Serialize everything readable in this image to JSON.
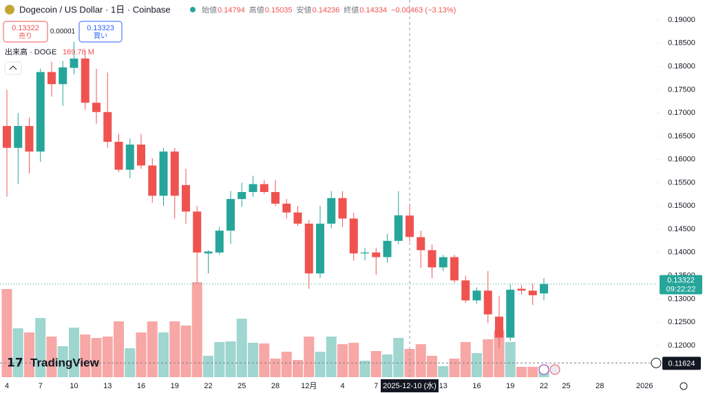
{
  "chart_data": {
    "type": "candlestick",
    "title": "Dogecoin / US Dollar · 1日 · Coinbase",
    "legend_labels": [
      "始値",
      "高値",
      "安値",
      "終値"
    ],
    "change_label": "−0.00463 (−3.13%)",
    "bid": 0.13322,
    "bid_label": "売り",
    "spread": 1e-05,
    "ask": 0.13323,
    "ask_label": "買い",
    "volume_title": "出来高 · DOGE",
    "volume_last_label": "169.78 M",
    "categories": [
      "4",
      null,
      null,
      "7",
      null,
      null,
      "10",
      null,
      null,
      "13",
      null,
      null,
      "16",
      null,
      null,
      "19",
      null,
      null,
      "22",
      null,
      null,
      "25",
      null,
      null,
      "28",
      null,
      null,
      "12月",
      null,
      null,
      "4",
      null,
      null,
      "7",
      null,
      null,
      null,
      null,
      null,
      "13",
      null,
      null,
      "16",
      null,
      null,
      "19",
      null,
      null,
      "22"
    ],
    "future_x_labels": [
      "25",
      "28",
      "2026"
    ],
    "crosshair_label": "2025-12-10 (水)",
    "open": [
      0.1672,
      0.1625,
      0.1672,
      0.1617,
      0.1788,
      0.1762,
      0.1797,
      0.1817,
      0.1722,
      0.1702,
      0.1638,
      0.1578,
      0.1632,
      0.1587,
      0.1522,
      0.1617,
      0.1545,
      0.1488,
      0.1398,
      0.14,
      0.1447,
      0.1515,
      0.153,
      0.1547,
      0.153,
      0.1505,
      0.1486,
      0.1462,
      0.1355,
      0.1462,
      0.1517,
      0.1473,
      0.1398,
      0.14,
      0.139,
      0.1425,
      0.14794,
      0.1433,
      0.1405,
      0.1368,
      0.139,
      0.134,
      0.1297,
      0.1318,
      0.1262,
      0.1217,
      0.1322,
      0.1318,
      0.1312
    ],
    "high": [
      0.175,
      0.17,
      0.169,
      0.1795,
      0.181,
      0.1812,
      0.1853,
      0.1833,
      0.1795,
      0.1787,
      0.1655,
      0.1645,
      0.1655,
      0.1603,
      0.1625,
      0.1625,
      0.158,
      0.15,
      0.1405,
      0.1455,
      0.1532,
      0.155,
      0.1565,
      0.1556,
      0.1556,
      0.1515,
      0.15,
      0.147,
      0.15,
      0.1532,
      0.1532,
      0.1485,
      0.141,
      0.141,
      0.144,
      0.1532,
      0.15035,
      0.1447,
      0.1417,
      0.1395,
      0.1395,
      0.135,
      0.1325,
      0.136,
      0.1307,
      0.1332,
      0.133,
      0.1333,
      0.1345
    ],
    "low": [
      0.152,
      0.1547,
      0.157,
      0.1595,
      0.1735,
      0.1715,
      0.1783,
      0.1707,
      0.1677,
      0.1625,
      0.1573,
      0.156,
      0.158,
      0.1507,
      0.15,
      0.1473,
      0.1462,
      0.1335,
      0.1355,
      0.1395,
      0.1418,
      0.1498,
      0.152,
      0.1526,
      0.15,
      0.1473,
      0.1457,
      0.1322,
      0.1345,
      0.1452,
      0.1455,
      0.1382,
      0.1383,
      0.1352,
      0.1378,
      0.1418,
      0.14236,
      0.1367,
      0.1345,
      0.136,
      0.1335,
      0.1292,
      0.129,
      0.1248,
      0.1195,
      0.121,
      0.131,
      0.1287,
      0.1297
    ],
    "close": [
      0.1625,
      0.1672,
      0.1617,
      0.1788,
      0.1762,
      0.1798,
      0.1817,
      0.1722,
      0.1702,
      0.1638,
      0.1578,
      0.1632,
      0.1587,
      0.1522,
      0.1617,
      0.1522,
      0.1488,
      0.14,
      0.1402,
      0.1447,
      0.1515,
      0.153,
      0.1547,
      0.153,
      0.1505,
      0.1486,
      0.1462,
      0.1355,
      0.1462,
      0.1517,
      0.1473,
      0.1398,
      0.14,
      0.139,
      0.1425,
      0.148,
      0.14334,
      0.1405,
      0.1368,
      0.139,
      0.134,
      0.1297,
      0.1318,
      0.1267,
      0.1217,
      0.132,
      0.1318,
      0.1308,
      0.13322
    ],
    "volume": [
      1357,
      753,
      689,
      912,
      625,
      477,
      763,
      657,
      604,
      625,
      859,
      445,
      689,
      859,
      689,
      859,
      795,
      1463,
      330,
      541,
      551,
      901,
      530,
      519,
      286,
      392,
      265,
      625,
      392,
      625,
      508,
      530,
      254,
      403,
      350,
      604,
      435,
      508,
      329,
      170,
      286,
      541,
      371,
      583,
      721,
      541,
      159,
      159,
      169.78
    ],
    "up_color": "#26a69a",
    "down_color": "#ef5350",
    "volume_up_color": "#9fd6d0",
    "volume_down_color": "#f7a7a5",
    "ylim": [
      0.11319,
      0.19429
    ],
    "yticks": [
      {
        "value": 0.12,
        "label": "0.12000"
      },
      {
        "value": 0.125,
        "label": "0.12500"
      },
      {
        "value": 0.13,
        "label": "0.13000"
      },
      {
        "value": 0.135,
        "label": "0.13500"
      },
      {
        "value": 0.14,
        "label": "0.14000"
      },
      {
        "value": 0.145,
        "label": "0.14500"
      },
      {
        "value": 0.15,
        "label": "0.15000"
      },
      {
        "value": 0.155,
        "label": "0.15500"
      },
      {
        "value": 0.16,
        "label": "0.16000"
      },
      {
        "value": 0.165,
        "label": "0.16500"
      },
      {
        "value": 0.17,
        "label": "0.17000"
      },
      {
        "value": 0.175,
        "label": "0.17500"
      },
      {
        "value": 0.18,
        "label": "0.18000"
      },
      {
        "value": 0.185,
        "label": "0.18500"
      },
      {
        "value": 0.19,
        "label": "0.19000"
      }
    ],
    "countdown": "09:22:22",
    "marker_price": 0.11624,
    "watermark": "TradingView",
    "grid": false
  }
}
